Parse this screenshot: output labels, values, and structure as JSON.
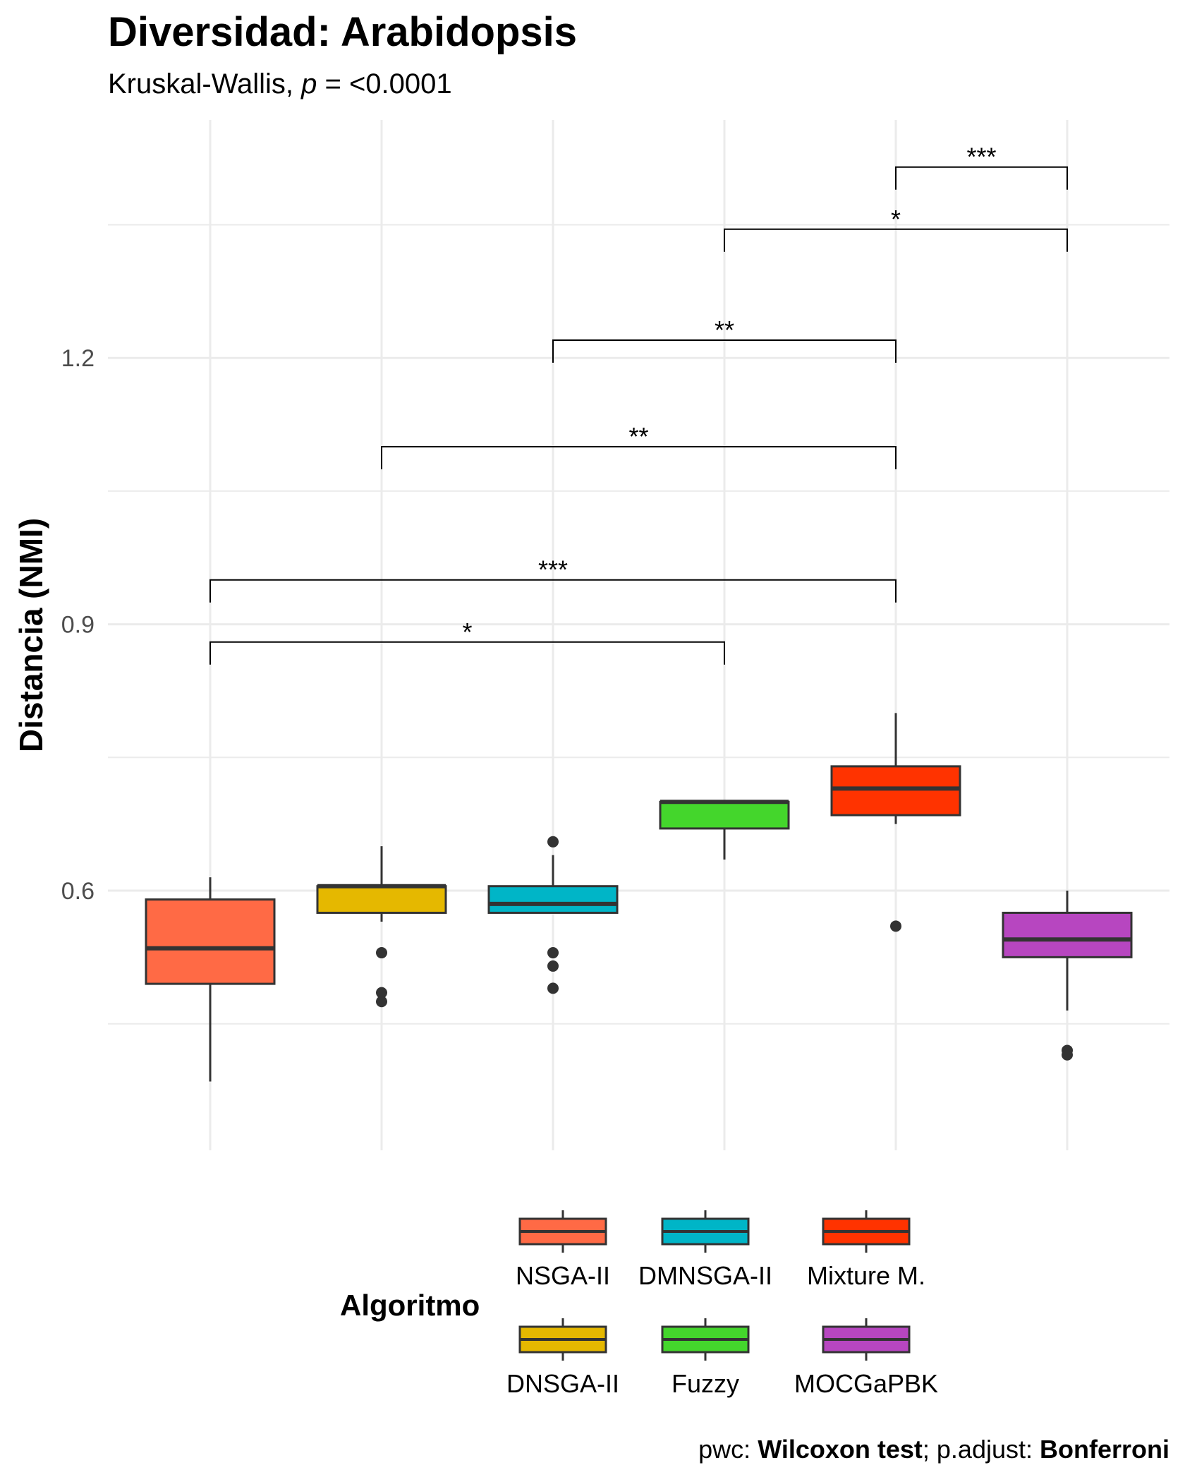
{
  "title": "Diversidad: Arabidopsis",
  "subtitle_prefix": "Kruskal-Wallis, ",
  "subtitle_p": "p",
  "subtitle_suffix": " = <0.0001",
  "caption_pwc": "pwc: ",
  "caption_test": "Wilcoxon test",
  "caption_sep": "; p.adjust: ",
  "caption_adjust": "Bonferroni",
  "chart_data": {
    "type": "boxplot",
    "title": "Diversidad: Arabidopsis",
    "subtitle": "Kruskal-Wallis, p = <0.0001",
    "ylabel": "Distancia (NMI)",
    "xlabel": "",
    "ylim": [
      0.36,
      1.52
    ],
    "yticks": [
      0.6,
      0.9,
      1.2
    ],
    "ytick_labels": [
      "0.6",
      "0.9",
      "1.2"
    ],
    "grid": true,
    "legend_title": "Algoritmo",
    "legend_position": "bottom",
    "categories": [
      "NSGA-II",
      "DNSGA-II",
      "DMNSGA-II",
      "Fuzzy",
      "Mixture M.",
      "MOCGaPBK"
    ],
    "colors": [
      "#FF6A45",
      "#E5B800",
      "#00B5C7",
      "#44D62C",
      "#FF3300",
      "#B746C0"
    ],
    "legend_order": [
      "NSGA-II",
      "DMNSGA-II",
      "Mixture M.",
      "DNSGA-II",
      "Fuzzy",
      "MOCGaPBK"
    ],
    "boxes": [
      {
        "name": "NSGA-II",
        "whisker_low": 0.385,
        "q1": 0.495,
        "median": 0.535,
        "q3": 0.59,
        "whisker_high": 0.615,
        "outliers": []
      },
      {
        "name": "DNSGA-II",
        "whisker_low": 0.565,
        "q1": 0.575,
        "median": 0.605,
        "q3": 0.605,
        "whisker_high": 0.65,
        "outliers": [
          0.53,
          0.485,
          0.475
        ]
      },
      {
        "name": "DMNSGA-II",
        "whisker_low": 0.575,
        "q1": 0.575,
        "median": 0.585,
        "q3": 0.605,
        "whisker_high": 0.64,
        "outliers": [
          0.655,
          0.53,
          0.515,
          0.49
        ]
      },
      {
        "name": "Fuzzy",
        "whisker_low": 0.635,
        "q1": 0.67,
        "median": 0.7,
        "q3": 0.7,
        "whisker_high": 0.7,
        "outliers": []
      },
      {
        "name": "Mixture M.",
        "whisker_low": 0.675,
        "q1": 0.685,
        "median": 0.715,
        "q3": 0.74,
        "whisker_high": 0.8,
        "outliers": [
          0.56
        ]
      },
      {
        "name": "MOCGaPBK",
        "whisker_low": 0.465,
        "q1": 0.525,
        "median": 0.545,
        "q3": 0.575,
        "whisker_high": 0.6,
        "outliers": [
          0.42,
          0.415
        ]
      }
    ],
    "comparisons": [
      {
        "group1": "NSGA-II",
        "group2": "Fuzzy",
        "y": 0.88,
        "label": "*"
      },
      {
        "group1": "NSGA-II",
        "group2": "Mixture M.",
        "y": 0.95,
        "label": "***"
      },
      {
        "group1": "DNSGA-II",
        "group2": "Mixture M.",
        "y": 1.1,
        "label": "**"
      },
      {
        "group1": "DMNSGA-II",
        "group2": "Mixture M.",
        "y": 1.22,
        "label": "**"
      },
      {
        "group1": "Fuzzy",
        "group2": "MOCGaPBK",
        "y": 1.345,
        "label": "*"
      },
      {
        "group1": "Mixture M.",
        "group2": "MOCGaPBK",
        "y": 1.415,
        "label": "***"
      }
    ]
  }
}
